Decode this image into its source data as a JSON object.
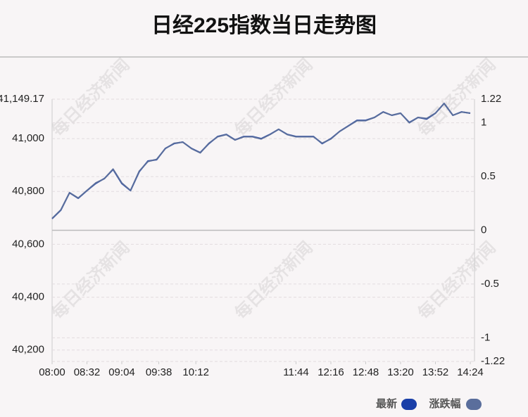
{
  "chart_data": {
    "type": "line",
    "title": "日经225指数当日走势图",
    "watermark": "每日经济新闻",
    "x": [
      "08:00",
      "08:08",
      "08:16",
      "08:24",
      "08:32",
      "08:40",
      "08:48",
      "08:56",
      "09:04",
      "09:12",
      "09:20",
      "09:28",
      "09:36",
      "09:44",
      "09:52",
      "10:00",
      "10:08",
      "10:16",
      "10:24",
      "10:32",
      "10:40",
      "10:48",
      "10:56",
      "11:04",
      "11:12",
      "11:20",
      "11:28",
      "11:36",
      "11:44",
      "11:52",
      "12:00",
      "12:08",
      "12:16",
      "12:24",
      "12:32",
      "12:40",
      "12:48",
      "12:56",
      "13:04",
      "13:12",
      "13:20",
      "13:28",
      "13:36",
      "13:44",
      "13:52",
      "14:00",
      "14:08",
      "14:16",
      "14:24"
    ],
    "xticks": [
      "08:00",
      "08:32",
      "09:04",
      "09:38",
      "10:12",
      "11:44",
      "12:16",
      "12:48",
      "13:20",
      "13:52",
      "14:24"
    ],
    "xtick_pos": [
      0,
      4,
      8,
      12.25,
      16.5,
      28,
      32,
      36,
      40,
      44,
      48
    ],
    "series": [
      {
        "name": "最新",
        "color": "#1a3fa8",
        "axis": "y",
        "values": [
          40697,
          40729,
          40795,
          40774,
          40803,
          40830,
          40849,
          40883,
          40830,
          40803,
          40875,
          40915,
          40920,
          40963,
          40981,
          40987,
          40963,
          40947,
          40981,
          41008,
          41016,
          40995,
          41008,
          41008,
          41000,
          41016,
          41035,
          41016,
          41008,
          41008,
          41008,
          40981,
          41000,
          41027,
          41048,
          41069,
          41069,
          41080,
          41101,
          41088,
          41096,
          41061,
          41080,
          41074,
          41096,
          41133,
          41088,
          41101,
          41096
        ]
      },
      {
        "name": "涨跌幅",
        "color": "#5a6e9c",
        "axis": "y2",
        "values": [
          0.11,
          0.19,
          0.35,
          0.3,
          0.37,
          0.44,
          0.48,
          0.57,
          0.44,
          0.37,
          0.55,
          0.64,
          0.66,
          0.76,
          0.81,
          0.82,
          0.76,
          0.72,
          0.81,
          0.87,
          0.89,
          0.84,
          0.87,
          0.87,
          0.85,
          0.89,
          0.94,
          0.89,
          0.87,
          0.87,
          0.87,
          0.81,
          0.85,
          0.92,
          0.97,
          1.02,
          1.02,
          1.05,
          1.1,
          1.07,
          1.09,
          1.0,
          1.05,
          1.04,
          1.09,
          1.18,
          1.07,
          1.1,
          1.09
        ]
      }
    ],
    "ylim": [
      40156.83,
      41149.17
    ],
    "yticks": [
      {
        "value": 40200,
        "label": "40,200"
      },
      {
        "value": 40400,
        "label": "40,400"
      },
      {
        "value": 40600,
        "label": "40,600"
      },
      {
        "value": 40800,
        "label": "40,800"
      },
      {
        "value": 41000,
        "label": "41,000"
      },
      {
        "value": 41149.17,
        "label": "41,149.17"
      }
    ],
    "y2lim": [
      -1.22,
      1.22
    ],
    "y2ticks": [
      -1.22,
      -1,
      -0.5,
      0,
      0.5,
      1,
      1.22
    ],
    "grid": true
  }
}
